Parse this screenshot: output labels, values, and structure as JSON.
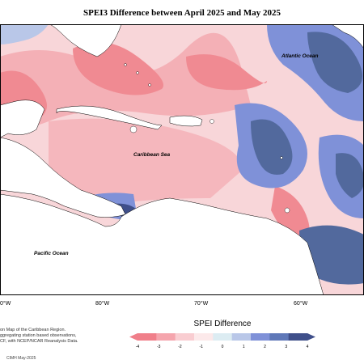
{
  "title": "SPEI3 Difference between April 2025 and May 2025",
  "labels": {
    "atlantic": "Atlantic Ocean",
    "caribbean": "Caribbean Sea",
    "pacific": "Pacific Ocean"
  },
  "longitudes": [
    "0°W",
    "80°W",
    "70°W",
    "60°W"
  ],
  "note_lines": [
    "on Map of the Caribbean Region.",
    "ggregating station based observations,",
    "CF, with NCEP/NCAR Reanalysis Data."
  ],
  "credit": "CIMH May-2025",
  "legend": {
    "title": "SPEI Difference",
    "ticks": [
      "-4",
      "-3",
      "-2",
      "-1",
      "0",
      "1",
      "2",
      "3",
      "4"
    ],
    "colors": [
      "#f07f8a",
      "#f5a5ad",
      "#f9cdd1",
      "#fce9ea",
      "#dcecf2",
      "#b9c7e8",
      "#7f91d8",
      "#5f78b8",
      "#3f4f8a"
    ]
  },
  "colors": {
    "land": "#ffffff",
    "dry_strong": "#f08a92",
    "dry": "#f6b3b9",
    "dry_light": "#f9d4d7",
    "neutral": "#fdf0f1",
    "wet_light": "#b9c7e8",
    "wet": "#7f91d8",
    "wet_strong": "#52699d",
    "wet_deep": "#3f4f8a"
  }
}
